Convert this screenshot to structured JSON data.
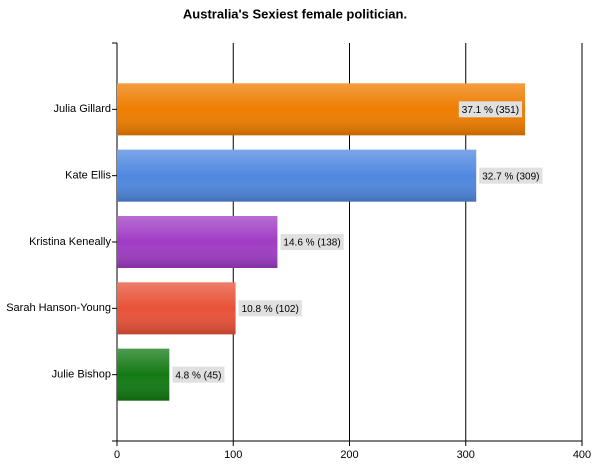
{
  "chart_data": {
    "type": "bar",
    "orientation": "horizontal",
    "title": "Australia's Sexiest female politician.",
    "categories": [
      "Julia Gillard",
      "Kate Ellis",
      "Kristina Keneally",
      "Sarah Hanson-Young",
      "Julie Bishop"
    ],
    "values": [
      351,
      309,
      138,
      102,
      45
    ],
    "value_labels": [
      "37.1 % (351)",
      "32.7 % (309)",
      "14.6 % (138)",
      "10.8 % (102)",
      "4.8 % (45)"
    ],
    "colors": [
      "#ee7d00",
      "#5088e0",
      "#a03cc4",
      "#e85238",
      "#137a13"
    ],
    "xlim": [
      0,
      400
    ],
    "xticks": [
      0,
      100,
      200,
      300,
      400
    ],
    "grid": true
  }
}
